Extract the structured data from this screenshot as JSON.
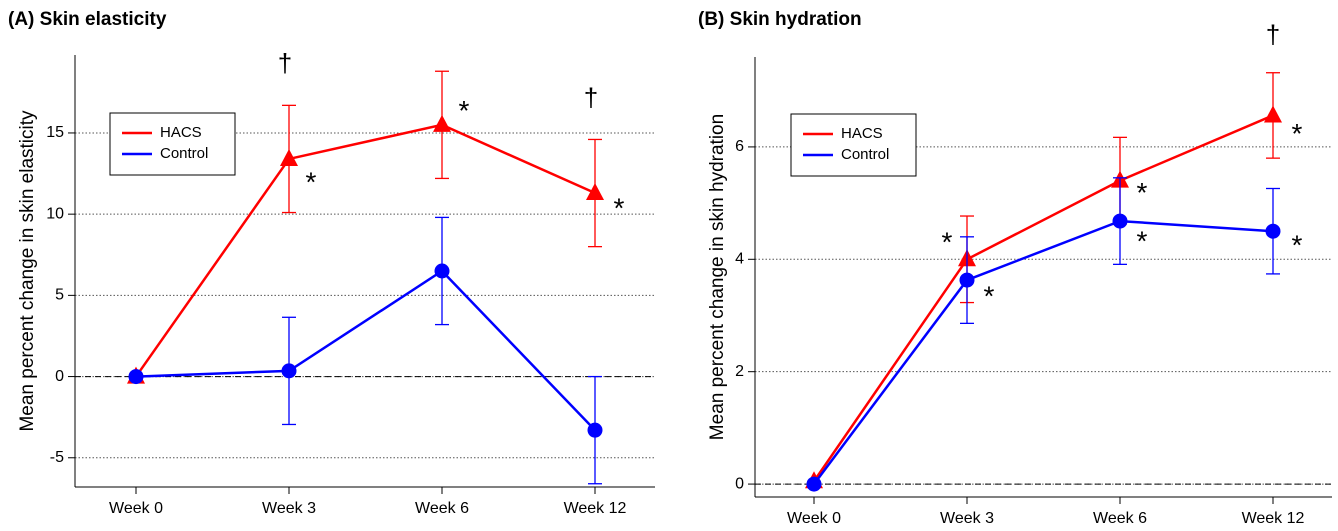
{
  "chart_data": [
    {
      "type": "line",
      "title": "(A)  Skin elasticity",
      "ylabel": "Mean percent change in skin elasticity",
      "categories": [
        "Week 0",
        "Week 3",
        "Week 6",
        "Week 12"
      ],
      "series": [
        {
          "name": "HACS",
          "color": "#ff0000",
          "marker": "triangle",
          "values": [
            0,
            13.4,
            15.5,
            11.3
          ],
          "errors": [
            0,
            3.3,
            3.3,
            3.3
          ]
        },
        {
          "name": "Control",
          "color": "#0000ff",
          "marker": "circle",
          "values": [
            0,
            0.35,
            6.5,
            -3.3
          ],
          "errors": [
            0,
            3.3,
            3.3,
            3.3
          ]
        }
      ],
      "ylim": [
        -6.8,
        19.8
      ],
      "yticks": [
        -5,
        0,
        5,
        10,
        15
      ],
      "grid": true,
      "reference_line": 0,
      "legend": "upper left",
      "annotations": [
        {
          "text": "†",
          "x": "Week 3"
        },
        {
          "text": "*",
          "x": "Week 3",
          "series": "HACS"
        },
        {
          "text": "*",
          "x": "Week 6",
          "series": "HACS"
        },
        {
          "text": "†",
          "x": "Week 12"
        },
        {
          "text": "*",
          "x": "Week 12",
          "series": "HACS"
        }
      ]
    },
    {
      "type": "line",
      "title": "(B)  Skin hydration",
      "ylabel": "Mean percent change in skin hydration",
      "categories": [
        "Week 0",
        "Week 3",
        "Week 6",
        "Week 12"
      ],
      "series": [
        {
          "name": "HACS",
          "color": "#ff0000",
          "marker": "triangle",
          "values": [
            0.05,
            4.0,
            5.4,
            6.56
          ],
          "errors": [
            0,
            0.77,
            0.77,
            0.76
          ]
        },
        {
          "name": "Control",
          "color": "#0000ff",
          "marker": "circle",
          "values": [
            0,
            3.63,
            4.68,
            4.5
          ],
          "errors": [
            0,
            0.77,
            0.77,
            0.76
          ]
        }
      ],
      "ylim": [
        -0.23,
        7.6
      ],
      "yticks": [
        0,
        2,
        4,
        6
      ],
      "grid": true,
      "reference_line": 0,
      "legend": "upper left",
      "annotations": [
        {
          "text": "*",
          "x": "Week 3",
          "series": "HACS"
        },
        {
          "text": "*",
          "x": "Week 3",
          "series": "Control"
        },
        {
          "text": "*",
          "x": "Week 6",
          "series": "HACS"
        },
        {
          "text": "*",
          "x": "Week 6",
          "series": "Control"
        },
        {
          "text": "†",
          "x": "Week 12"
        },
        {
          "text": "*",
          "x": "Week 12",
          "series": "HACS"
        },
        {
          "text": "*",
          "x": "Week 12",
          "series": "Control"
        }
      ]
    }
  ]
}
